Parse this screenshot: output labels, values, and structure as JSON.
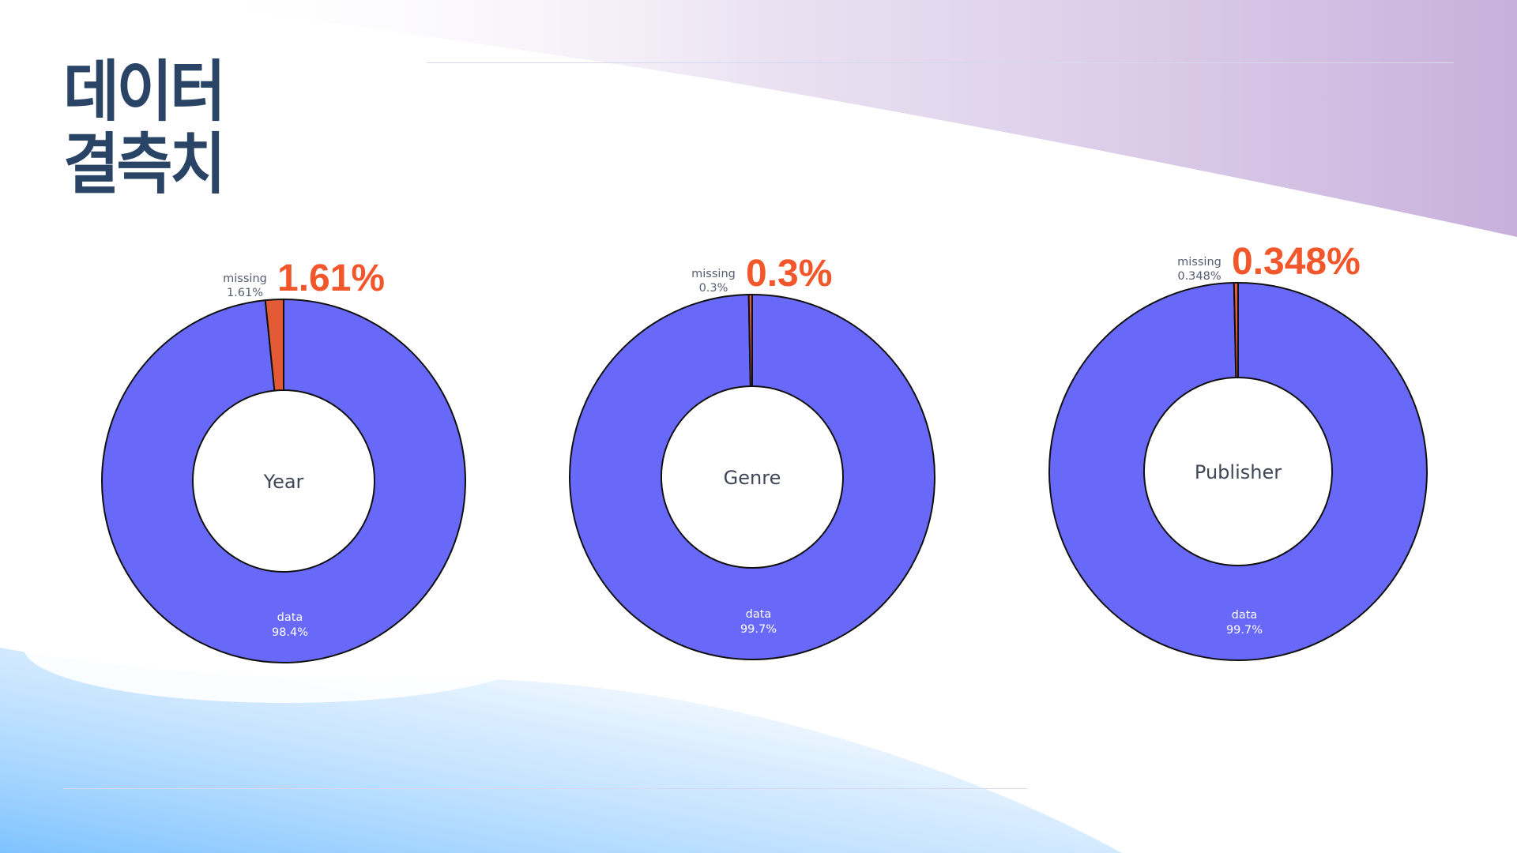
{
  "title": {
    "line1": "데이터",
    "line2": "결측치"
  },
  "colors": {
    "data": "#6869f8",
    "missing": "#e35b34",
    "highlight": "#f2562b",
    "title": "#2a4466"
  },
  "chart_data": [
    {
      "type": "pie",
      "hole": true,
      "center_label": "Year",
      "slices": [
        {
          "label": "missing",
          "value": 1.61,
          "text": "1.61%"
        },
        {
          "label": "data",
          "value": 98.39,
          "text": "98.4%"
        }
      ],
      "highlight": "1.61%"
    },
    {
      "type": "pie",
      "hole": true,
      "center_label": "Genre",
      "slices": [
        {
          "label": "missing",
          "value": 0.3,
          "text": "0.3%"
        },
        {
          "label": "data",
          "value": 99.7,
          "text": "99.7%"
        }
      ],
      "highlight": "0.3%"
    },
    {
      "type": "pie",
      "hole": true,
      "center_label": "Publisher",
      "slices": [
        {
          "label": "missing",
          "value": 0.348,
          "text": "0.348%"
        },
        {
          "label": "data",
          "value": 99.652,
          "text": "99.7%"
        }
      ],
      "highlight": "0.348%"
    }
  ]
}
